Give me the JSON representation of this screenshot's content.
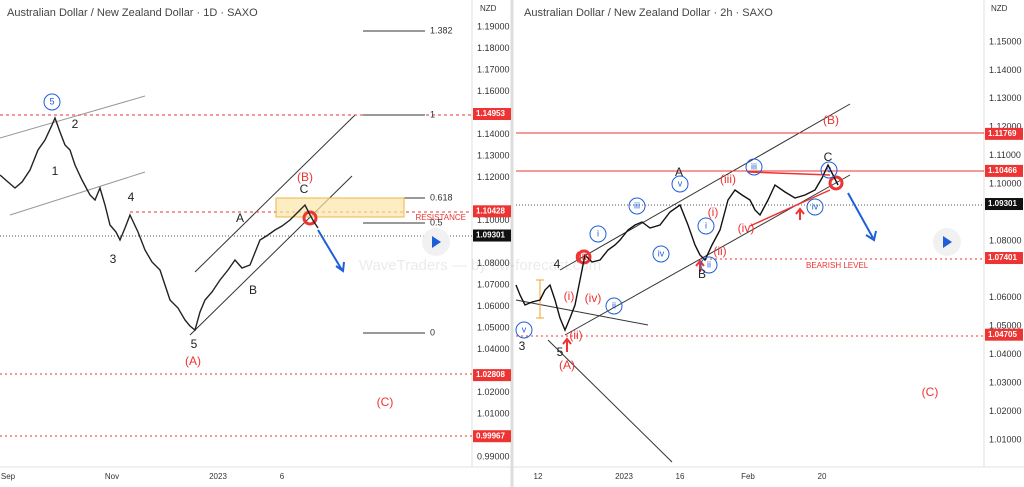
{
  "left": {
    "title": "Australian Dollar / New Zealand Dollar · 1D · SAXO",
    "currency": "NZD",
    "axis_labels": [
      "1.19000",
      "1.18000",
      "1.17000",
      "1.16000",
      "1.14000",
      "1.13000",
      "1.12000",
      "1.10000",
      "1.08000",
      "1.07000",
      "1.06000",
      "1.05000",
      "1.04000",
      "1.02000",
      "1.01000",
      "0.99000"
    ],
    "price_tags": [
      "1.14953",
      "1.10428",
      "1.09301",
      "1.02808",
      "0.99967"
    ],
    "x_labels": [
      "Sep",
      "Nov",
      "2023",
      "6"
    ],
    "fib_labels": [
      "1.382",
      "1",
      "0.618",
      "0.5",
      "0"
    ],
    "resistance": "RESISTANCE",
    "waves": [
      "5",
      "2",
      "1",
      "4",
      "3",
      "5",
      "(A)",
      "A",
      "B",
      "(B)",
      "C",
      "(C)"
    ]
  },
  "right": {
    "title": "Australian Dollar / New Zealand Dollar · 2h · SAXO",
    "currency": "NZD",
    "axis_labels": [
      "1.15000",
      "1.14000",
      "1.13000",
      "1.12000",
      "1.11000",
      "1.10000",
      "1.08000",
      "1.06000",
      "1.05000",
      "1.04000",
      "1.03000",
      "1.02000",
      "1.01000"
    ],
    "price_tags": [
      "1.11769",
      "1.10466",
      "1.09301",
      "1.07401",
      "1.04705"
    ],
    "x_labels": [
      "12",
      "2023",
      "16",
      "Feb",
      "20"
    ],
    "bearish": "BEARISH LEVEL",
    "waves": [
      "v",
      "3",
      "4",
      "(iii)",
      "(i)",
      "(iv)",
      "(ii)",
      "5",
      "(A)",
      "i",
      "iii",
      "ii",
      "iv",
      "v",
      "A",
      "i",
      "ii",
      "(i)",
      "(ii)",
      "B",
      "(iii)",
      "iii",
      "(iv)",
      "iv",
      "v",
      "C",
      "(B)",
      "(C)"
    ]
  },
  "watermark": "WaveTraders — by ew-forecast.com"
}
